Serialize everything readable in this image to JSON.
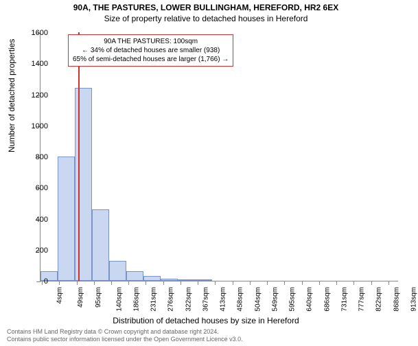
{
  "title": "90A, THE PASTURES, LOWER BULLINGHAM, HEREFORD, HR2 6EX",
  "subtitle": "Size of property relative to detached houses in Hereford",
  "chart": {
    "type": "histogram",
    "xlabel": "Distribution of detached houses by size in Hereford",
    "ylabel": "Number of detached properties",
    "ylim": [
      0,
      1600
    ],
    "ytick_step": 200,
    "yticks": [
      0,
      200,
      400,
      600,
      800,
      1000,
      1200,
      1400,
      1600
    ],
    "xlim_sqm": [
      0,
      940
    ],
    "xtick_labels": [
      "4sqm",
      "49sqm",
      "95sqm",
      "140sqm",
      "186sqm",
      "231sqm",
      "276sqm",
      "322sqm",
      "367sqm",
      "413sqm",
      "458sqm",
      "504sqm",
      "549sqm",
      "595sqm",
      "640sqm",
      "686sqm",
      "731sqm",
      "777sqm",
      "822sqm",
      "868sqm",
      "913sqm"
    ],
    "xtick_positions_sqm": [
      4,
      49,
      95,
      140,
      186,
      231,
      276,
      322,
      367,
      413,
      458,
      504,
      549,
      595,
      640,
      686,
      731,
      777,
      822,
      868,
      913
    ],
    "bars": [
      {
        "x_start": 0,
        "x_end": 45,
        "value": 60
      },
      {
        "x_start": 45,
        "x_end": 90,
        "value": 800
      },
      {
        "x_start": 90,
        "x_end": 135,
        "value": 1240
      },
      {
        "x_start": 135,
        "x_end": 180,
        "value": 460
      },
      {
        "x_start": 180,
        "x_end": 225,
        "value": 130
      },
      {
        "x_start": 225,
        "x_end": 270,
        "value": 60
      },
      {
        "x_start": 270,
        "x_end": 315,
        "value": 30
      },
      {
        "x_start": 315,
        "x_end": 360,
        "value": 15
      },
      {
        "x_start": 360,
        "x_end": 405,
        "value": 10
      },
      {
        "x_start": 405,
        "x_end": 450,
        "value": 6
      }
    ],
    "bar_fill": "#c9d8f0",
    "bar_border": "#7a93c8",
    "axis_color": "#888888",
    "background_color": "#ffffff",
    "marker": {
      "x_sqm": 100,
      "color": "#d03030"
    },
    "callout": {
      "lines": [
        "90A THE PASTURES: 100sqm",
        "← 34% of detached houses are smaller (938)",
        "65% of semi-detached houses are larger (1,766) →"
      ],
      "border_color": "#d03030"
    }
  },
  "attribution": {
    "line1": "Contains HM Land Registry data © Crown copyright and database right 2024.",
    "line2": "Contains public sector information licensed under the Open Government Licence v3.0."
  }
}
